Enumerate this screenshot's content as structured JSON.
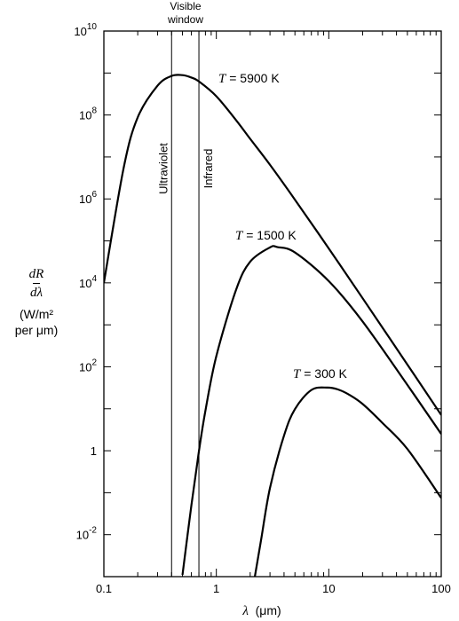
{
  "chart_data": {
    "type": "line",
    "title": "",
    "xlabel_symbol": "λ",
    "xlabel_unit": "(μm)",
    "ylabel_num": "dR",
    "ylabel_den": "dλ",
    "ylabel_unit_line1": "(W/m²",
    "ylabel_unit_line2": "per μm)",
    "x_scale": "log",
    "y_scale": "log",
    "xlim": [
      0.1,
      100
    ],
    "ylim": [
      0.001,
      10000000000
    ],
    "x_ticks": [
      {
        "value": 0.1,
        "label": "0.1"
      },
      {
        "value": 1,
        "label": "1"
      },
      {
        "value": 10,
        "label": "10"
      },
      {
        "value": 100,
        "label": "100"
      }
    ],
    "y_ticks": [
      {
        "value": 0.01,
        "base": "10",
        "exp": "-2"
      },
      {
        "value": 1,
        "base": "1",
        "exp": ""
      },
      {
        "value": 100,
        "base": "10",
        "exp": "2"
      },
      {
        "value": 10000,
        "base": "10",
        "exp": "4"
      },
      {
        "value": 1000000,
        "base": "10",
        "exp": "6"
      },
      {
        "value": 100000000,
        "base": "10",
        "exp": "8"
      },
      {
        "value": 10000000000,
        "base": "10",
        "exp": "10"
      }
    ],
    "visible_window": {
      "label_line1": "Visible",
      "label_line2": "window",
      "lower_um": 0.4,
      "upper_um": 0.7,
      "lower_label": "Ultraviolet",
      "upper_label": "Infrared"
    },
    "series": [
      {
        "name": "T = 5900 K",
        "T_prefix": "T",
        "T_suffix": " = 5900 K",
        "x": [
          0.1,
          0.15,
          0.2,
          0.3,
          0.4,
          0.5,
          0.6,
          0.7,
          1,
          1.5,
          2,
          3,
          5,
          10,
          20,
          50,
          100
        ],
        "y": [
          10000,
          5500000,
          88000000,
          500000000,
          850000000,
          890000000,
          780000000,
          630000000,
          280000000,
          75000000,
          27000000,
          6500000,
          960000,
          66000,
          4300,
          113,
          7.1
        ]
      },
      {
        "name": "T = 1500 K",
        "T_prefix": "T",
        "T_suffix": " = 1500 K",
        "x": [
          0.5,
          0.6,
          0.7,
          0.8,
          1,
          1.5,
          2,
          3,
          3.5,
          5,
          10,
          20,
          50,
          100
        ],
        "y": [
          0.0011,
          0.05,
          0.97,
          9,
          180,
          6900,
          32000,
          70000,
          71000,
          53000,
          11000,
          1200,
          37,
          2.5
        ]
      },
      {
        "name": "T = 300 K",
        "T_prefix": "T",
        "T_suffix": " = 300 K",
        "x": [
          2.2,
          2.5,
          3,
          4,
          5,
          7,
          9.7,
          12,
          15,
          20,
          30,
          50,
          100
        ],
        "y": [
          0.001,
          0.0075,
          0.13,
          2.3,
          9.8,
          28,
          32,
          29,
          22,
          13,
          4.6,
          1.1,
          0.075
        ]
      }
    ]
  }
}
